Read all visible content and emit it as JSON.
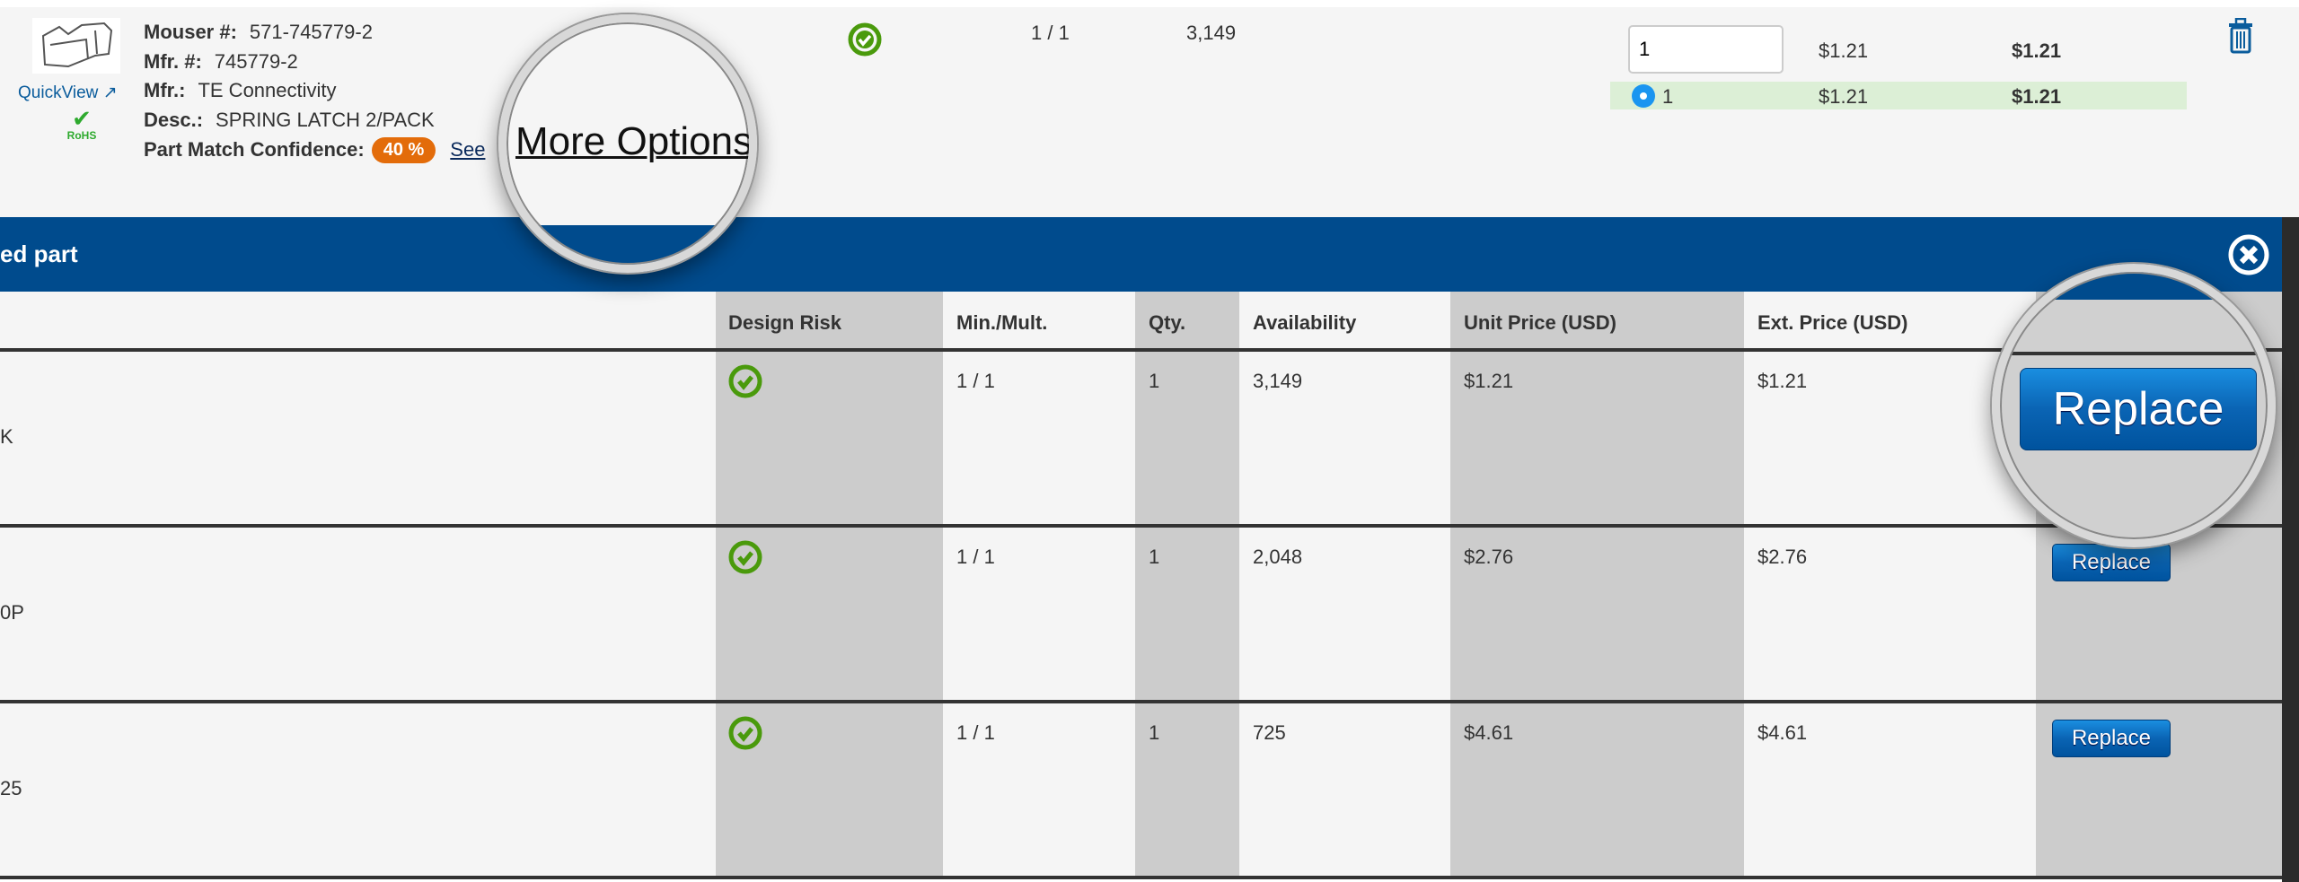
{
  "part": {
    "image_alt": "spring latch",
    "quickview_label": "QuickView",
    "rohs_label": "RoHS",
    "mouser_label": "Mouser #:",
    "mouser_value": "571-745779-2",
    "mfr_no_label": "Mfr. #:",
    "mfr_no_value": "745779-2",
    "mfr_label": "Mfr.:",
    "mfr_value": "TE Connectivity",
    "desc_label": "Desc.:",
    "desc_value": "SPRING LATCH 2/PACK",
    "confidence_label": "Part Match Confidence:",
    "confidence_value": "40 %",
    "see_link": "See",
    "more_options_link": "More Options",
    "design_risk_icon": "check-circle-icon",
    "min_mult": "1 / 1",
    "availability": "3,149",
    "qty_input_value": "1",
    "unit_price": "$1.21",
    "ext_price": "$1.21",
    "price_break_qty": "1",
    "price_break_unit": "$1.21",
    "price_break_ext": "$1.21"
  },
  "panel": {
    "title": "ed part",
    "columns": [
      "Design Risk",
      "Min./Mult.",
      "Qty.",
      "Availability",
      "Unit Price (USD)",
      "Ext. Price (USD)"
    ],
    "rows": [
      {
        "left_text": "K",
        "min_mult": "1 / 1",
        "qty": "1",
        "availability": "3,149",
        "unit_price": "$1.21",
        "ext_price": "$1.21",
        "button": "Replace"
      },
      {
        "left_text": "0P",
        "min_mult": "1 / 1",
        "qty": "1",
        "availability": "2,048",
        "unit_price": "$2.76",
        "ext_price": "$2.76",
        "button": "Replace"
      },
      {
        "left_text": "25",
        "min_mult": "1 / 1",
        "qty": "1",
        "availability": "725",
        "unit_price": "$4.61",
        "ext_price": "$4.61",
        "button": "Replace"
      }
    ]
  },
  "colors": {
    "brand_blue": "#004b8d",
    "check_green": "#4a9a0c",
    "badge_orange": "#e36c0a",
    "selected_row": "#dcefd6"
  }
}
